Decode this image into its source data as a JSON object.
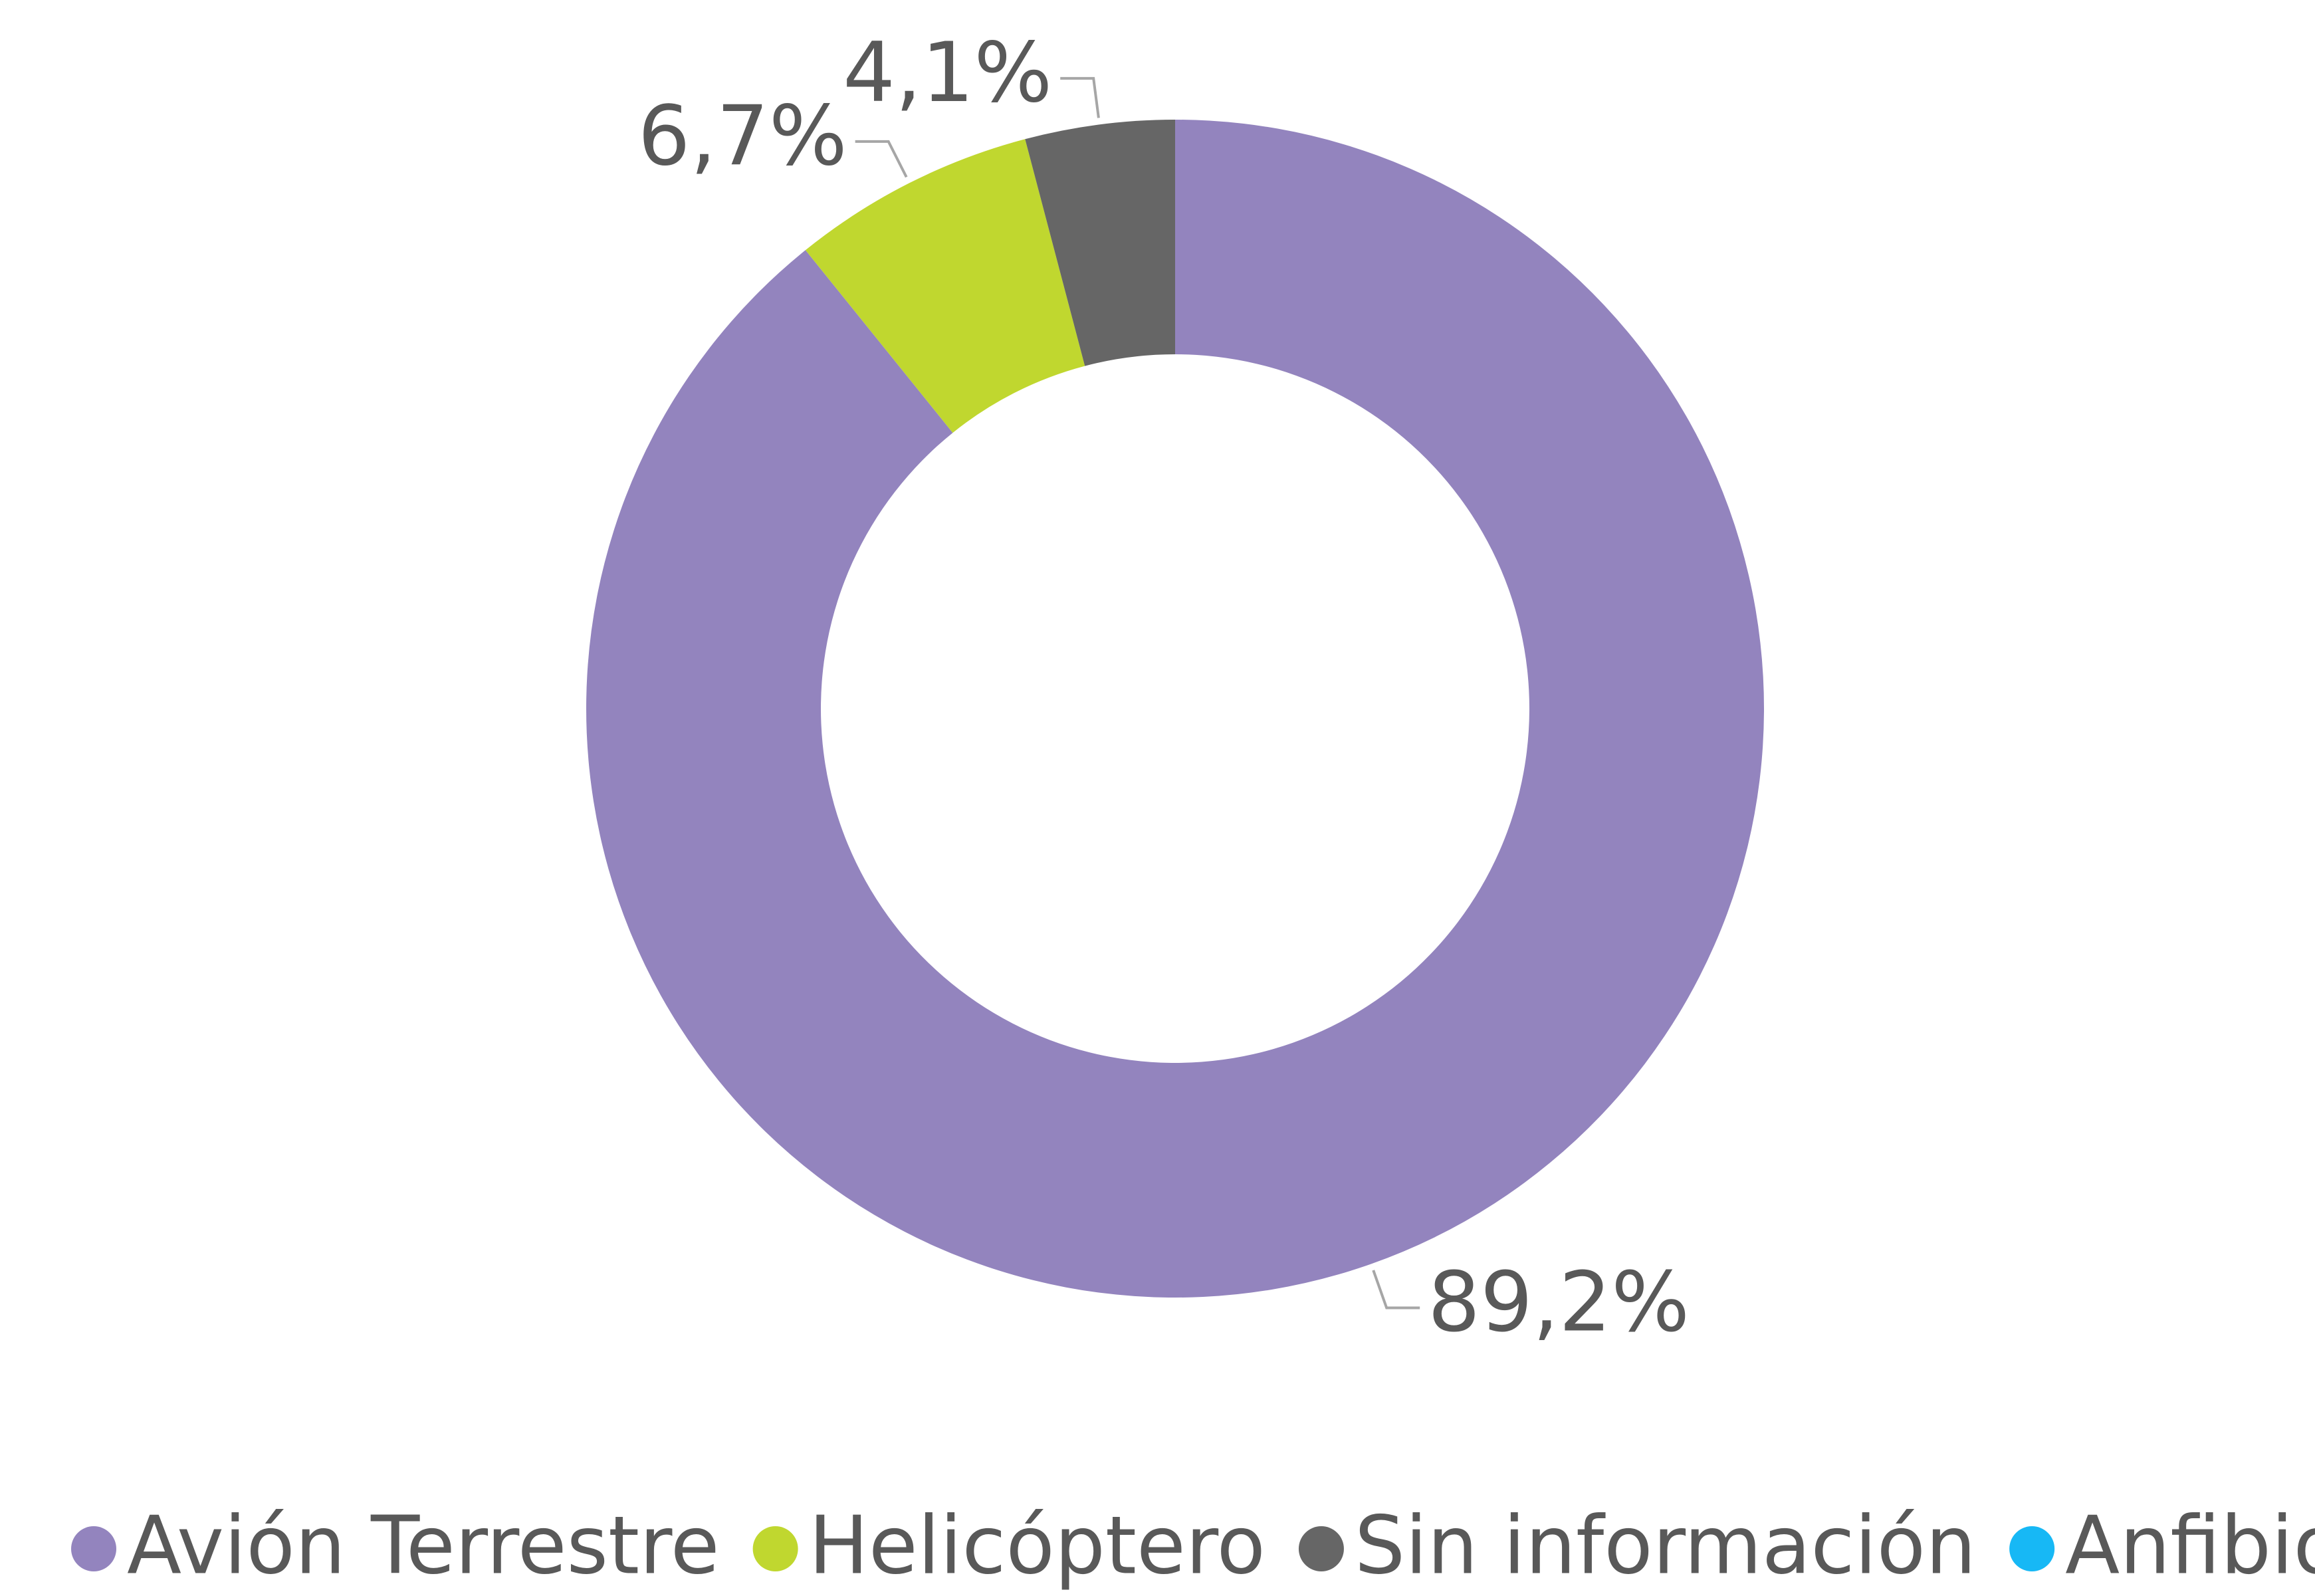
{
  "chart_data": {
    "type": "donut",
    "categories": [
      "Avión Terrestre",
      "Helicóptero",
      "Sin información",
      "Anfibio"
    ],
    "values": [
      89.2,
      6.7,
      4.1,
      0
    ],
    "value_labels": [
      "89,2%",
      "6,7%",
      "4,1%",
      null
    ],
    "colors": [
      "#9384be",
      "#c0d72f",
      "#666666",
      "#17b8f5"
    ],
    "legend": "bottom"
  }
}
